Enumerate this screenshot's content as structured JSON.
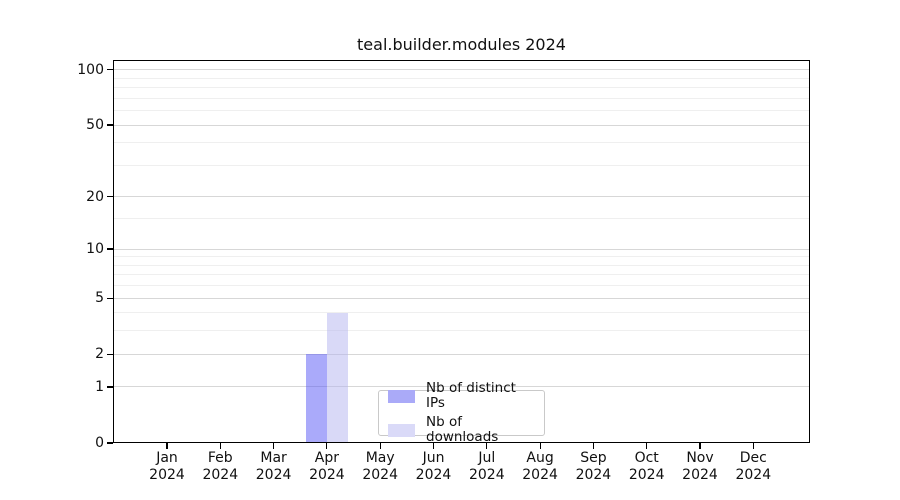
{
  "chart_data": {
    "type": "bar",
    "title": "teal.builder.modules 2024",
    "categories": [
      "Jan 2024",
      "Feb 2024",
      "Mar 2024",
      "Apr 2024",
      "May 2024",
      "Jun 2024",
      "Jul 2024",
      "Aug 2024",
      "Sep 2024",
      "Oct 2024",
      "Nov 2024",
      "Dec 2024"
    ],
    "series": [
      {
        "name": "Nb of distinct IPs",
        "swatch_color": "#aaaaf8",
        "bar_fill": "rgba(85,85,245,0.5)",
        "values": [
          0,
          0,
          0,
          2,
          0,
          0,
          0,
          0,
          0,
          0,
          0,
          0
        ]
      },
      {
        "name": "Nb of downloads",
        "swatch_color": "#dadaf8",
        "bar_fill": "rgba(180,180,240,0.5)",
        "values": [
          0,
          0,
          0,
          4,
          0,
          0,
          0,
          0,
          0,
          0,
          0,
          0
        ]
      }
    ],
    "yscale": "log1p",
    "ylim": [
      0,
      113
    ],
    "y_major_ticks": [
      0,
      1,
      2,
      5,
      10,
      20,
      50,
      100
    ],
    "y_minor_ticks": [
      3,
      4,
      6,
      7,
      8,
      9,
      15,
      30,
      40,
      60,
      70,
      80,
      90
    ],
    "grid": true,
    "grid_major_color": "#d7d7d7",
    "grid_minor_color": "#efefef",
    "axis_color": "#000000",
    "legend_position": "lower center inside"
  }
}
